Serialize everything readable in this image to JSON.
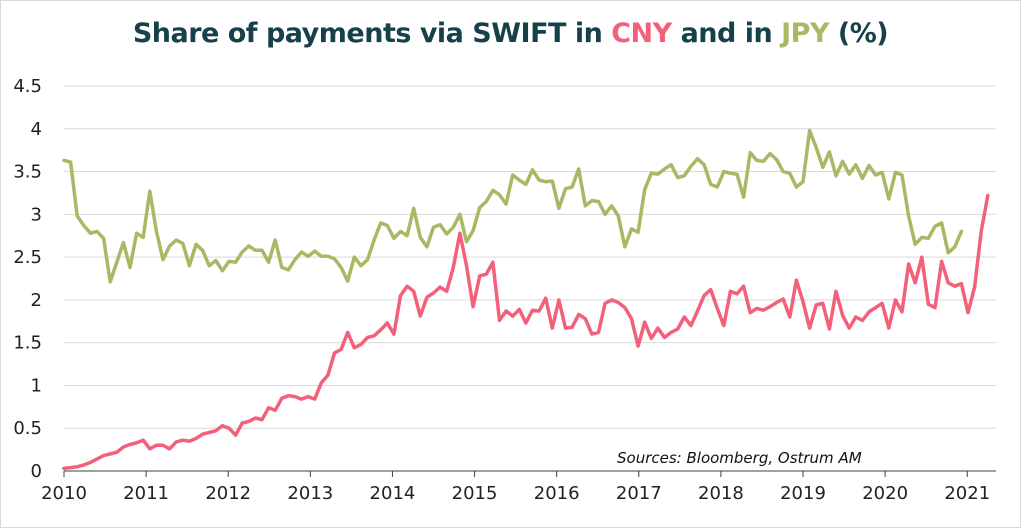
{
  "chart_data": {
    "type": "line",
    "title": {
      "part1": "Share of payments via SWIFT in ",
      "cny": "CNY",
      "part2": " and in ",
      "jpy": "JPY",
      "part3": " (%)"
    },
    "source": "Sources: Bloomberg, Ostrum AM",
    "ylim": [
      0,
      4.5
    ],
    "yticks": [
      "0",
      "0.5",
      "1",
      "1.5",
      "2",
      "2.5",
      "3",
      "3.5",
      "4",
      "4.5"
    ],
    "xlim": [
      2010,
      2021.35
    ],
    "xticks": [
      "2010",
      "2011",
      "2012",
      "2013",
      "2014",
      "2015",
      "2016",
      "2017",
      "2018",
      "2019",
      "2020",
      "2021"
    ],
    "grid": true,
    "legend": "none (series identified by title colours)",
    "x_start": "2010-01",
    "x_end": "2021-04",
    "x_step": "monthly",
    "series": [
      {
        "color": "#f2607a",
        "values": [
          0.03,
          0.04,
          0.05,
          0.07,
          0.1,
          0.14,
          0.18,
          0.2,
          0.22,
          0.28,
          0.31,
          0.33,
          0.36,
          0.26,
          0.3,
          0.3,
          0.26,
          0.34,
          0.36,
          0.35,
          0.38,
          0.43,
          0.45,
          0.47,
          0.53,
          0.5,
          0.42,
          0.56,
          0.58,
          0.62,
          0.6,
          0.74,
          0.71,
          0.85,
          0.88,
          0.87,
          0.84,
          0.87,
          0.84,
          1.03,
          1.12,
          1.38,
          1.42,
          1.62,
          1.44,
          1.48,
          1.56,
          1.58,
          1.65,
          1.73,
          1.6,
          2.05,
          2.16,
          2.1,
          1.81,
          2.03,
          2.08,
          2.15,
          2.1,
          2.38,
          2.78,
          2.4,
          1.92,
          2.28,
          2.3,
          2.44,
          1.76,
          1.87,
          1.81,
          1.89,
          1.73,
          1.88,
          1.87,
          2.02,
          1.67,
          2.0,
          1.67,
          1.68,
          1.83,
          1.78,
          1.6,
          1.62,
          1.96,
          2.0,
          1.97,
          1.91,
          1.78,
          1.46,
          1.74,
          1.55,
          1.67,
          1.56,
          1.62,
          1.66,
          1.8,
          1.7,
          1.87,
          2.05,
          2.12,
          1.9,
          1.7,
          2.1,
          2.07,
          2.16,
          1.85,
          1.9,
          1.88,
          1.92,
          1.97,
          2.01,
          1.8,
          2.23,
          1.98,
          1.67,
          1.94,
          1.96,
          1.66,
          2.1,
          1.82,
          1.67,
          1.8,
          1.76,
          1.86,
          1.91,
          1.96,
          1.67,
          2.0,
          1.86,
          2.42,
          2.2,
          2.5,
          1.95,
          1.91,
          2.45,
          2.2,
          2.16,
          2.19,
          1.85,
          2.15,
          2.8,
          3.22
        ]
      },
      {
        "color": "#a8b864",
        "values": [
          3.63,
          3.61,
          2.98,
          2.87,
          2.78,
          2.8,
          2.72,
          2.21,
          2.44,
          2.67,
          2.38,
          2.78,
          2.73,
          3.27,
          2.8,
          2.47,
          2.63,
          2.7,
          2.66,
          2.4,
          2.65,
          2.58,
          2.4,
          2.46,
          2.34,
          2.45,
          2.44,
          2.56,
          2.63,
          2.58,
          2.58,
          2.44,
          2.7,
          2.38,
          2.35,
          2.47,
          2.56,
          2.51,
          2.57,
          2.51,
          2.51,
          2.48,
          2.38,
          2.22,
          2.5,
          2.4,
          2.47,
          2.7,
          2.9,
          2.87,
          2.72,
          2.8,
          2.75,
          3.07,
          2.73,
          2.62,
          2.85,
          2.88,
          2.77,
          2.85,
          3.0,
          2.68,
          2.81,
          3.08,
          3.15,
          3.28,
          3.23,
          3.12,
          3.46,
          3.4,
          3.35,
          3.52,
          3.4,
          3.38,
          3.39,
          3.07,
          3.3,
          3.32,
          3.53,
          3.1,
          3.16,
          3.15,
          3.0,
          3.1,
          2.98,
          2.62,
          2.83,
          2.79,
          3.29,
          3.48,
          3.47,
          3.53,
          3.58,
          3.43,
          3.45,
          3.56,
          3.65,
          3.58,
          3.35,
          3.32,
          3.5,
          3.48,
          3.47,
          3.2,
          3.72,
          3.63,
          3.62,
          3.71,
          3.64,
          3.5,
          3.48,
          3.32,
          3.38,
          3.98,
          3.78,
          3.55,
          3.73,
          3.45,
          3.62,
          3.47,
          3.58,
          3.42,
          3.57,
          3.46,
          3.49,
          3.18,
          3.49,
          3.46,
          2.98,
          2.65,
          2.73,
          2.72,
          2.86,
          2.9,
          2.55,
          2.62,
          2.8
        ]
      }
    ]
  }
}
